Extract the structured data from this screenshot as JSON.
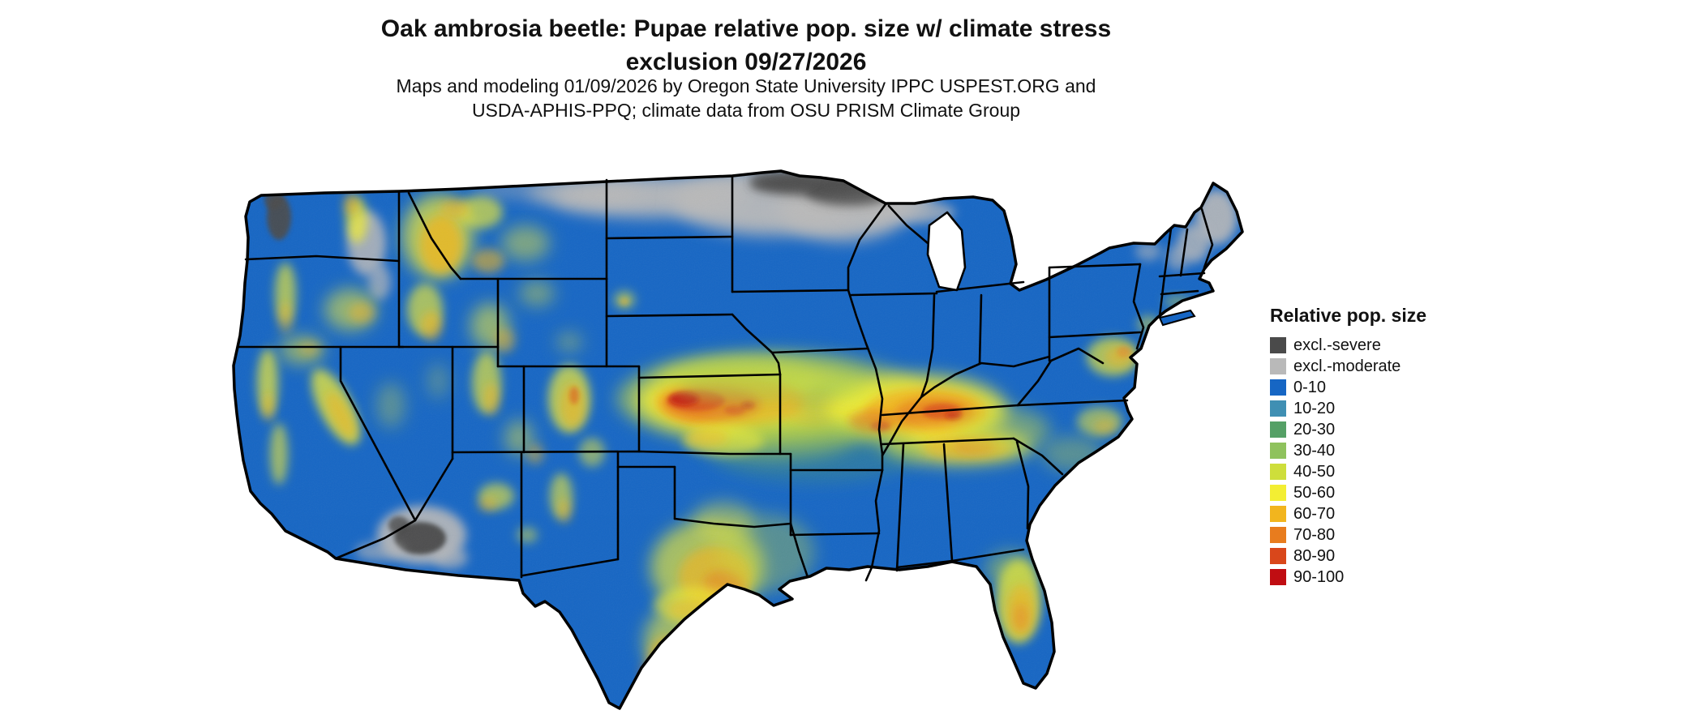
{
  "header": {
    "title_line1": "Oak ambrosia beetle: Pupae relative pop. size w/ climate stress",
    "title_line2": "exclusion 09/27/2026",
    "subtitle_line1": "Maps and modeling 01/09/2026 by Oregon State University IPPC USPEST.ORG and",
    "subtitle_line2": "USDA-APHIS-PPQ; climate data from OSU PRISM Climate Group"
  },
  "legend": {
    "title": "Relative pop. size",
    "items": [
      {
        "key": "sev",
        "label": "excl.-severe",
        "color": "#4a4a4a"
      },
      {
        "key": "mod",
        "label": "excl.-moderate",
        "color": "#b9b9b9"
      },
      {
        "key": "b0",
        "label": "0-10",
        "color": "#1666c4"
      },
      {
        "key": "b10",
        "label": "10-20",
        "color": "#3f8fb3"
      },
      {
        "key": "g20",
        "label": "20-30",
        "color": "#55a066"
      },
      {
        "key": "g30",
        "label": "30-40",
        "color": "#8fc25d"
      },
      {
        "key": "y40",
        "label": "40-50",
        "color": "#cede3b"
      },
      {
        "key": "y50",
        "label": "50-60",
        "color": "#f3ee33"
      },
      {
        "key": "o60",
        "label": "60-70",
        "color": "#f2b51e"
      },
      {
        "key": "o70",
        "label": "70-80",
        "color": "#e87c1e"
      },
      {
        "key": "r80",
        "label": "80-90",
        "color": "#d9471b"
      },
      {
        "key": "r90",
        "label": "90-100",
        "color": "#c00d12"
      }
    ]
  },
  "map": {
    "base_color_key": "b0",
    "description": "Continental US raster: mostly 0-10 (blue); climate-stress exclusion grays across ND/MN/northern New England, Puget Sound and southern AZ; high relative pop. size (yellow-red) band across KS-MO-IL-IN-KY-TN, central/south Texas, central Florida, mid-Atlantic coast and scattered western mountains.",
    "blobs": [
      [
        800,
        242,
        120,
        26,
        "mod",
        0.95,
        "b10"
      ],
      [
        950,
        248,
        120,
        42,
        "mod",
        0.95,
        "b10"
      ],
      [
        1040,
        255,
        80,
        42,
        "mod",
        0.95,
        "b10"
      ],
      [
        1095,
        245,
        55,
        28,
        "mod",
        0.9,
        "b10"
      ],
      [
        720,
        238,
        70,
        16,
        "mod",
        0.8,
        "b10"
      ],
      [
        640,
        234,
        60,
        10,
        "mod",
        0.5,
        "b10"
      ],
      [
        1140,
        262,
        38,
        13,
        "mod",
        0.7,
        "b6"
      ],
      [
        1000,
        227,
        75,
        14,
        "sev",
        0.9,
        "b6"
      ],
      [
        1048,
        236,
        55,
        18,
        "sev",
        0.85,
        "b6"
      ],
      [
        965,
        222,
        40,
        10,
        "sev",
        0.7,
        "b6"
      ],
      [
        1500,
        268,
        26,
        34,
        "mod",
        0.9,
        "b6"
      ],
      [
        1472,
        300,
        20,
        24,
        "mod",
        0.8,
        "b6"
      ],
      [
        1452,
        318,
        14,
        16,
        "mod",
        0.6,
        "b6"
      ],
      [
        1416,
        310,
        16,
        12,
        "mod",
        0.55,
        "b6"
      ],
      [
        452,
        300,
        24,
        40,
        "mod",
        0.85,
        "b6"
      ],
      [
        468,
        348,
        14,
        22,
        "mod",
        0.7,
        "b6"
      ],
      [
        344,
        268,
        15,
        28,
        "sev",
        0.9,
        "b3"
      ],
      [
        337,
        247,
        11,
        12,
        "sev",
        0.85,
        "b3"
      ],
      [
        520,
        660,
        55,
        36,
        "mod",
        0.9,
        "b6"
      ],
      [
        555,
        688,
        22,
        14,
        "mod",
        0.7,
        "b6"
      ],
      [
        518,
        664,
        32,
        20,
        "sev",
        0.95,
        "b3"
      ],
      [
        492,
        648,
        13,
        11,
        "sev",
        0.8,
        "b3"
      ],
      [
        468,
        680,
        30,
        12,
        "mod",
        0.6,
        "b6"
      ],
      [
        540,
        292,
        44,
        52,
        "y50",
        0.7,
        "b10"
      ],
      [
        544,
        302,
        26,
        36,
        "o60",
        0.75,
        "b6"
      ],
      [
        592,
        262,
        28,
        20,
        "y50",
        0.65,
        "b6"
      ],
      [
        602,
        322,
        20,
        15,
        "o60",
        0.6,
        "b6"
      ],
      [
        648,
        300,
        30,
        22,
        "y50",
        0.45,
        "b10"
      ],
      [
        560,
        258,
        18,
        12,
        "o60",
        0.55,
        "b6"
      ],
      [
        524,
        382,
        22,
        32,
        "y50",
        0.65,
        "b6"
      ],
      [
        532,
        402,
        13,
        18,
        "o60",
        0.6,
        "b6"
      ],
      [
        604,
        402,
        24,
        28,
        "y50",
        0.55,
        "b10"
      ],
      [
        622,
        420,
        13,
        15,
        "o60",
        0.5,
        "b6"
      ],
      [
        440,
        272,
        13,
        28,
        "y50",
        0.75,
        "b6"
      ],
      [
        433,
        252,
        9,
        14,
        "o60",
        0.6,
        "b6"
      ],
      [
        352,
        362,
        13,
        38,
        "y50",
        0.65,
        "b6"
      ],
      [
        352,
        392,
        9,
        20,
        "o60",
        0.45,
        "b6"
      ],
      [
        432,
        382,
        32,
        26,
        "y50",
        0.55,
        "b10"
      ],
      [
        446,
        386,
        16,
        13,
        "o60",
        0.5,
        "b6"
      ],
      [
        330,
        472,
        13,
        42,
        "y50",
        0.7,
        "b6"
      ],
      [
        344,
        560,
        11,
        38,
        "y50",
        0.6,
        "b6"
      ],
      [
        331,
        502,
        7,
        18,
        "o60",
        0.5,
        "b6"
      ],
      [
        414,
        502,
        20,
        52,
        "y50",
        0.75,
        "b6",
        -28
      ],
      [
        420,
        512,
        11,
        32,
        "o60",
        0.6,
        "b6",
        -28
      ],
      [
        372,
        432,
        28,
        18,
        "y50",
        0.5,
        "b10"
      ],
      [
        382,
        430,
        13,
        9,
        "o60",
        0.4,
        "b6"
      ],
      [
        482,
        500,
        18,
        28,
        "y50",
        0.3,
        "b10"
      ],
      [
        540,
        470,
        14,
        22,
        "y50",
        0.25,
        "b10"
      ],
      [
        600,
        472,
        18,
        38,
        "y50",
        0.65,
        "b6"
      ],
      [
        606,
        492,
        9,
        20,
        "o60",
        0.55,
        "b6"
      ],
      [
        640,
        540,
        18,
        22,
        "y50",
        0.45,
        "b10"
      ],
      [
        660,
        560,
        11,
        13,
        "o60",
        0.45,
        "b6"
      ],
      [
        702,
        492,
        26,
        42,
        "y50",
        0.7,
        "b6"
      ],
      [
        706,
        500,
        15,
        28,
        "o60",
        0.6,
        "b6"
      ],
      [
        708,
        488,
        6,
        11,
        "r80",
        0.5,
        "b3"
      ],
      [
        730,
        558,
        16,
        18,
        "y50",
        0.5,
        "b6"
      ],
      [
        692,
        612,
        14,
        28,
        "y50",
        0.6,
        "b6"
      ],
      [
        696,
        630,
        8,
        15,
        "o60",
        0.5,
        "b6"
      ],
      [
        612,
        612,
        22,
        16,
        "y50",
        0.6,
        "b6"
      ],
      [
        602,
        622,
        12,
        9,
        "o60",
        0.5,
        "b6"
      ],
      [
        650,
        660,
        13,
        10,
        "y50",
        0.45,
        "b6"
      ],
      [
        662,
        362,
        22,
        16,
        "y50",
        0.4,
        "b10"
      ],
      [
        702,
        422,
        16,
        12,
        "y50",
        0.35,
        "b10"
      ],
      [
        770,
        370,
        13,
        11,
        "y50",
        0.55,
        "b6"
      ],
      [
        770,
        372,
        6,
        5,
        "o60",
        0.45,
        "b3"
      ],
      [
        950,
        492,
        190,
        58,
        "y40",
        0.55,
        "b10"
      ],
      [
        935,
        494,
        150,
        46,
        "y50",
        0.85,
        "b10"
      ],
      [
        900,
        496,
        92,
        32,
        "o60",
        0.9,
        "b6"
      ],
      [
        878,
        498,
        60,
        22,
        "o70",
        0.85,
        "b6"
      ],
      [
        858,
        494,
        36,
        13,
        "r80",
        0.8,
        "b3"
      ],
      [
        844,
        492,
        18,
        8,
        "r90",
        0.8,
        "b3"
      ],
      [
        906,
        506,
        13,
        6,
        "r80",
        0.6,
        "b3"
      ],
      [
        922,
        500,
        8,
        4,
        "r90",
        0.55,
        "b3"
      ],
      [
        1005,
        505,
        40,
        22,
        "o60",
        0.5,
        "b6"
      ],
      [
        1035,
        498,
        50,
        30,
        "g30",
        0.4,
        "b10"
      ],
      [
        1130,
        506,
        112,
        44,
        "y50",
        0.85,
        "b10"
      ],
      [
        1142,
        509,
        76,
        30,
        "o60",
        0.85,
        "b6"
      ],
      [
        1152,
        511,
        50,
        20,
        "o70",
        0.75,
        "b6"
      ],
      [
        1162,
        508,
        25,
        10,
        "r80",
        0.7,
        "b3"
      ],
      [
        1176,
        513,
        10,
        5,
        "r90",
        0.65,
        "b3"
      ],
      [
        1076,
        520,
        30,
        14,
        "o70",
        0.65,
        "b6"
      ],
      [
        1086,
        526,
        12,
        6,
        "r80",
        0.55,
        "b3"
      ],
      [
        1182,
        550,
        92,
        24,
        "y50",
        0.7,
        "b10"
      ],
      [
        1192,
        552,
        55,
        15,
        "o60",
        0.6,
        "b6"
      ],
      [
        1202,
        550,
        26,
        9,
        "o70",
        0.5,
        "b6"
      ],
      [
        1235,
        530,
        60,
        28,
        "y40",
        0.45,
        "b10"
      ],
      [
        905,
        465,
        95,
        22,
        "y40",
        0.5,
        "b10"
      ],
      [
        955,
        470,
        120,
        32,
        "g30",
        0.35,
        "b10"
      ],
      [
        955,
        540,
        100,
        28,
        "y40",
        0.45,
        "b10"
      ],
      [
        1005,
        558,
        130,
        38,
        "g20",
        0.3,
        "b10"
      ],
      [
        892,
        544,
        50,
        18,
        "y50",
        0.55,
        "b6"
      ],
      [
        872,
        540,
        26,
        11,
        "o60",
        0.45,
        "b6"
      ],
      [
        872,
        700,
        70,
        58,
        "y50",
        0.65,
        "b10"
      ],
      [
        882,
        712,
        45,
        38,
        "o60",
        0.65,
        "b6"
      ],
      [
        892,
        722,
        25,
        19,
        "o70",
        0.5,
        "b6"
      ],
      [
        832,
        792,
        38,
        44,
        "y50",
        0.6,
        "b10"
      ],
      [
        822,
        812,
        24,
        27,
        "o60",
        0.55,
        "b6"
      ],
      [
        802,
        832,
        13,
        15,
        "o70",
        0.45,
        "b6"
      ],
      [
        892,
        642,
        38,
        23,
        "y50",
        0.45,
        "b10"
      ],
      [
        945,
        682,
        60,
        48,
        "y40",
        0.35,
        "b10"
      ],
      [
        858,
        746,
        52,
        22,
        "y50",
        0.6,
        "b6"
      ],
      [
        852,
        752,
        28,
        13,
        "o60",
        0.45,
        "b6"
      ],
      [
        1256,
        742,
        28,
        52,
        "y50",
        0.75,
        "b6"
      ],
      [
        1259,
        752,
        17,
        33,
        "o60",
        0.65,
        "b6"
      ],
      [
        1259,
        762,
        9,
        17,
        "o70",
        0.45,
        "b6"
      ],
      [
        1247,
        702,
        32,
        22,
        "y40",
        0.45,
        "b10"
      ],
      [
        1372,
        440,
        32,
        24,
        "y50",
        0.65,
        "b6"
      ],
      [
        1380,
        440,
        18,
        13,
        "o60",
        0.55,
        "b6"
      ],
      [
        1386,
        434,
        9,
        7,
        "o70",
        0.45,
        "b3"
      ],
      [
        1356,
        520,
        28,
        18,
        "y50",
        0.55,
        "b6"
      ],
      [
        1362,
        526,
        14,
        9,
        "o60",
        0.45,
        "b6"
      ],
      [
        1322,
        560,
        38,
        22,
        "y40",
        0.35,
        "b10"
      ],
      [
        1416,
        400,
        14,
        11,
        "y50",
        0.45,
        "b6"
      ],
      [
        1452,
        372,
        17,
        7,
        "y50",
        0.4,
        "b6"
      ]
    ]
  }
}
